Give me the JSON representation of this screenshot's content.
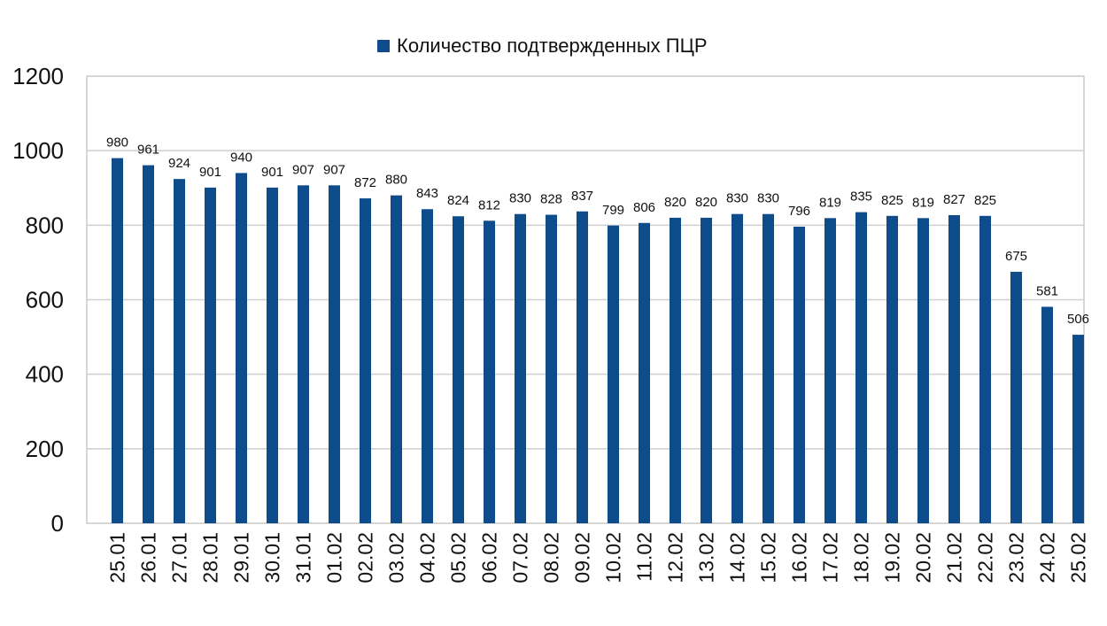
{
  "chart_data": {
    "type": "bar",
    "categories": [
      "25.01",
      "26.01",
      "27.01",
      "28.01",
      "29.01",
      "30.01",
      "31.01",
      "01.02",
      "02.02",
      "03.02",
      "04.02",
      "05.02",
      "06.02",
      "07.02",
      "08.02",
      "09.02",
      "10.02",
      "11.02",
      "12.02",
      "13.02",
      "14.02",
      "15.02",
      "16.02",
      "17.02",
      "18.02",
      "19.02",
      "20.02",
      "21.02",
      "22.02",
      "23.02",
      "24.02",
      "25.02"
    ],
    "series": [
      {
        "name": "Количество подтвержденных ПЦР",
        "values": [
          980,
          961,
          924,
          901,
          940,
          901,
          907,
          907,
          872,
          880,
          843,
          824,
          812,
          830,
          828,
          837,
          799,
          806,
          820,
          820,
          830,
          830,
          796,
          819,
          835,
          825,
          819,
          827,
          825,
          675,
          581,
          506
        ]
      }
    ],
    "ylim": [
      0,
      1200
    ],
    "yticks": [
      0,
      200,
      400,
      600,
      800,
      1000,
      1200
    ],
    "grid": true,
    "legend_position": "top-center",
    "bar_color": "#0f4c8c",
    "xlabel": "",
    "ylabel": ""
  }
}
